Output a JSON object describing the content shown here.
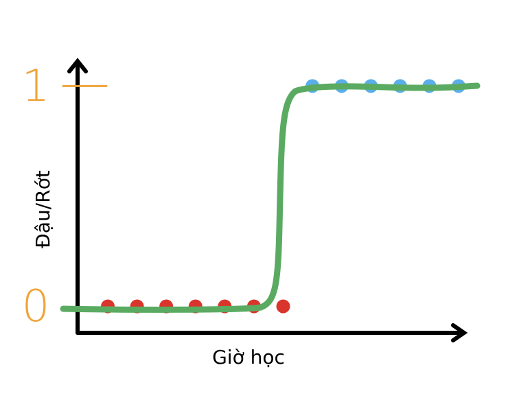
{
  "chart_data": {
    "type": "scatter",
    "x_label": "Giờ học",
    "y_label": "Đậu/Rớt",
    "categories": [
      null,
      null,
      null,
      null,
      null,
      null,
      null,
      null,
      null,
      null,
      null,
      null,
      null
    ],
    "series": [
      {
        "color": "#d9352c",
        "values": [
          0,
          0,
          0,
          0,
          0,
          0,
          0,
          null,
          null,
          null,
          null,
          null,
          null
        ]
      },
      {
        "color": "#5aaeea",
        "values": [
          null,
          null,
          null,
          null,
          null,
          null,
          null,
          1,
          1,
          1,
          1,
          1,
          1
        ]
      }
    ],
    "ylim": [
      -0.12,
      1.11
    ],
    "yticks": [
      0,
      1
    ],
    "tick_color": "#f0a43a",
    "curve_color": "#5aab61"
  }
}
